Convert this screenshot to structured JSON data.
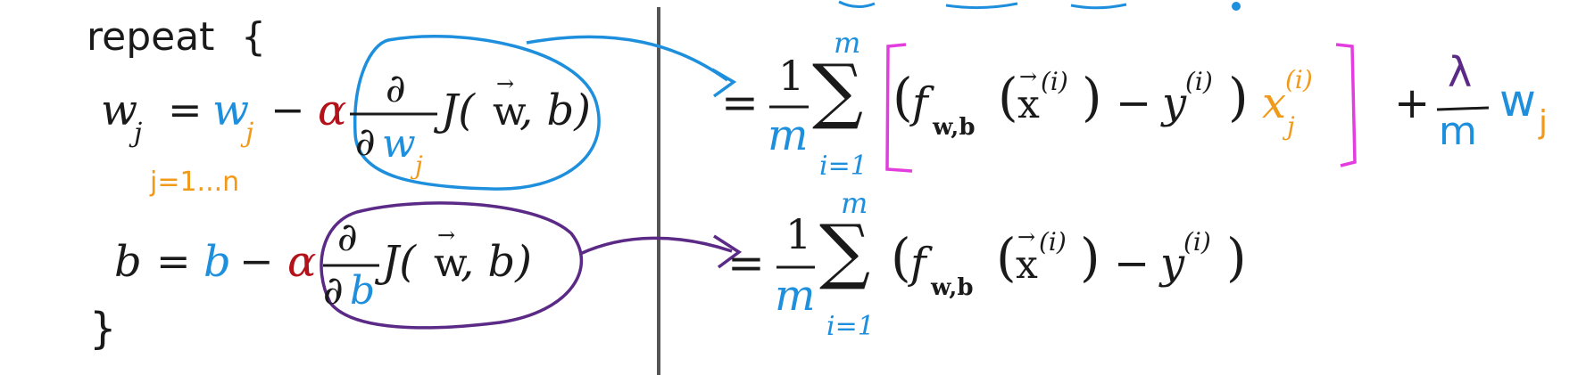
{
  "colors": {
    "black": "#1a1a1a",
    "blue": "#1e8fdc",
    "orange": "#f19a1a",
    "red": "#b3121b",
    "magenta": "#e23ddf",
    "purple": "#5b2a86",
    "divider": "#555555"
  },
  "left": {
    "repeat_label": "repeat",
    "open_brace": "{",
    "close_brace": "}",
    "w_update": {
      "lhs_var": "w",
      "lhs_sub": "j",
      "equals": "=",
      "rhs_var": "w",
      "rhs_sub": "j",
      "minus": "−",
      "alpha": "α",
      "partial_num": "∂",
      "partial_den": "∂",
      "den_var": "w",
      "den_sub": "j",
      "cost": "J(",
      "vec_w": "w",
      "arrow": "⃗",
      "cost_tail": ", b)"
    },
    "j_range_note": "j=1...n",
    "b_update": {
      "lhs": "b",
      "equals": "=",
      "rhs": "b",
      "minus": "−",
      "alpha": "α",
      "partial_num": "∂",
      "partial_den": "∂",
      "den_var": "b",
      "cost": "J(",
      "vec_w": "w",
      "cost_tail": ", b)"
    }
  },
  "right": {
    "w_derivative": {
      "equals": "=",
      "one": "1",
      "m": "m",
      "sigma": "∑",
      "sum_upper": "m",
      "sum_lower": "i=1",
      "open": "(",
      "f": "f",
      "f_sub": "w,b",
      "x_open": "(",
      "x": "x",
      "x_sup": "(i)",
      "x_close": ")",
      "minus": "−",
      "y": "y",
      "y_sup": "(i)",
      "close": ")",
      "xj": "x",
      "xj_sub": "j",
      "xj_sup": "(i)",
      "plus": "+",
      "lambda": "λ",
      "reg_m": "m",
      "reg_w": "w",
      "reg_sub": "j"
    },
    "b_derivative": {
      "equals": "=",
      "one": "1",
      "m": "m",
      "sigma": "∑",
      "sum_upper": "m",
      "sum_lower": "i=1",
      "open": "(",
      "f": "f",
      "f_sub": "w,b",
      "x_open": "(",
      "x": "x",
      "x_sup": "(i)",
      "x_close": ")",
      "minus": "−",
      "y": "y",
      "y_sup": "(i)",
      "close": ")"
    }
  }
}
